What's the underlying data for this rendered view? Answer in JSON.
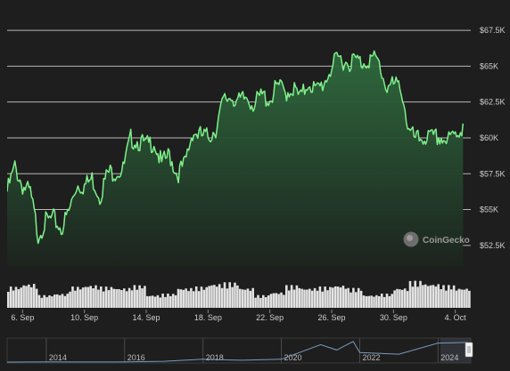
{
  "chart_data": {
    "type": "area",
    "x_ticks": [
      "6. Sep",
      "10. Sep",
      "14. Sep",
      "18. Sep",
      "22. Sep",
      "26. Sep",
      "30. Sep",
      "4. Oct"
    ],
    "y_ticks": [
      "$52.5K",
      "$55K",
      "$57.5K",
      "$60K",
      "$62.5K",
      "$65K",
      "$67.5K"
    ],
    "ylim": [
      51000,
      68500
    ],
    "x_range": [
      "2024-09-05",
      "2024-10-05"
    ],
    "grid": true,
    "series": [
      {
        "x": [
          "2024-09-05",
          "2024-09-05T12:00",
          "2024-09-06",
          "2024-09-06T12:00",
          "2024-09-07",
          "2024-09-07T12:00",
          "2024-09-08",
          "2024-09-08T12:00",
          "2024-09-09",
          "2024-09-09T12:00",
          "2024-09-10",
          "2024-09-10T12:00",
          "2024-09-11",
          "2024-09-11T12:00",
          "2024-09-12",
          "2024-09-12T12:00",
          "2024-09-13",
          "2024-09-13T12:00",
          "2024-09-14",
          "2024-09-14T12:00",
          "2024-09-15",
          "2024-09-15T12:00",
          "2024-09-16",
          "2024-09-16T12:00",
          "2024-09-17",
          "2024-09-17T12:00",
          "2024-09-18",
          "2024-09-18T12:00",
          "2024-09-19",
          "2024-09-19T12:00",
          "2024-09-20",
          "2024-09-20T12:00",
          "2024-09-21",
          "2024-09-21T12:00",
          "2024-09-22",
          "2024-09-22T12:00",
          "2024-09-23",
          "2024-09-23T12:00",
          "2024-09-24",
          "2024-09-24T12:00",
          "2024-09-25",
          "2024-09-25T12:00",
          "2024-09-26",
          "2024-09-26T12:00",
          "2024-09-27",
          "2024-09-27T12:00",
          "2024-09-28",
          "2024-09-28T12:00",
          "2024-09-29",
          "2024-09-29T12:00",
          "2024-09-30",
          "2024-09-30T12:00",
          "2024-10-01",
          "2024-10-01T12:00",
          "2024-10-02",
          "2024-10-02T12:00",
          "2024-10-03",
          "2024-10-03T12:00",
          "2024-10-04",
          "2024-10-04T12:00"
        ],
        "y": [
          56600,
          58300,
          57000,
          56500,
          53600,
          54500,
          54700,
          54000,
          55200,
          57100,
          57000,
          57500,
          56300,
          57900,
          58000,
          58100,
          60300,
          60100,
          59800,
          60100,
          58500,
          59200,
          57800,
          58500,
          60800,
          60500,
          60400,
          61000,
          62900,
          63300,
          62800,
          63200,
          62700,
          63300,
          63000,
          64000,
          63500,
          63800,
          63100,
          64300,
          63600,
          64200,
          65300,
          65900,
          65600,
          65800,
          65600,
          65900,
          65700,
          64000,
          64000,
          63900,
          60700,
          60200,
          60400,
          60300,
          60400,
          60100,
          60600,
          61000
        ]
      }
    ],
    "volume": {
      "label": "volume",
      "x": [
        "2024-09-05",
        "2024-09-06",
        "2024-09-07",
        "2024-09-08",
        "2024-09-09",
        "2024-09-10",
        "2024-09-11",
        "2024-09-12",
        "2024-09-13",
        "2024-09-14",
        "2024-09-15",
        "2024-09-16",
        "2024-09-17",
        "2024-09-18",
        "2024-09-19",
        "2024-09-20",
        "2024-09-21",
        "2024-09-22",
        "2024-09-23",
        "2024-09-24",
        "2024-09-25",
        "2024-09-26",
        "2024-09-27",
        "2024-09-28",
        "2024-09-29",
        "2024-09-30",
        "2024-10-01",
        "2024-10-02",
        "2024-10-03",
        "2024-10-04"
      ],
      "values": [
        0.75,
        0.85,
        0.45,
        0.5,
        0.75,
        0.8,
        0.75,
        0.7,
        0.8,
        0.45,
        0.5,
        0.7,
        0.75,
        0.85,
        0.9,
        0.7,
        0.45,
        0.55,
        0.8,
        0.7,
        0.75,
        0.8,
        0.7,
        0.45,
        0.5,
        0.7,
        0.95,
        0.85,
        0.8,
        0.7
      ]
    }
  },
  "navigator": {
    "year_labels": [
      "2014",
      "2016",
      "2018",
      "2020",
      "2022",
      "2024"
    ],
    "line_color": "#7a9ac0",
    "history": [
      {
        "x": "2013",
        "y": 100
      },
      {
        "x": "2014",
        "y": 500
      },
      {
        "x": "2015",
        "y": 300
      },
      {
        "x": "2016",
        "y": 600
      },
      {
        "x": "2017",
        "y": 2500
      },
      {
        "x": "2018",
        "y": 9000
      },
      {
        "x": "2019",
        "y": 6000
      },
      {
        "x": "2020",
        "y": 9000
      },
      {
        "x": "2021",
        "y": 55000
      },
      {
        "x": "2021-06",
        "y": 38000
      },
      {
        "x": "2021-11",
        "y": 65000
      },
      {
        "x": "2022",
        "y": 30000
      },
      {
        "x": "2023",
        "y": 25000
      },
      {
        "x": "2024",
        "y": 60000
      },
      {
        "x": "2024-10",
        "y": 62000
      }
    ]
  },
  "watermark": "CoinGecko",
  "colors": {
    "background": "#1e1e1e",
    "line": "#7ef08a",
    "area_top": "#2f6b3e",
    "area_bottom": "#1c231e",
    "grid": "#b8b8b8",
    "volume": "#e2e2e2"
  }
}
